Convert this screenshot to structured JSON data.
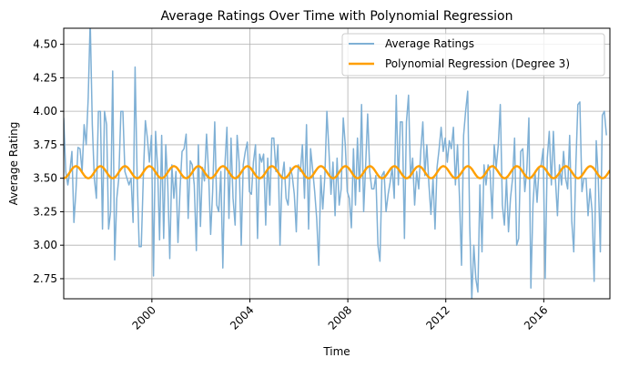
{
  "chart_data": {
    "type": "line",
    "title": "Average Ratings Over Time with Polynomial Regression",
    "xlabel": "Time",
    "ylabel": "Average Rating",
    "xlim": [
      1996.4,
      2018.7
    ],
    "ylim": [
      2.6,
      4.62
    ],
    "x_ticks": [
      2000,
      2004,
      2008,
      2012,
      2016
    ],
    "x_tick_labels": [
      "2000",
      "2004",
      "2008",
      "2012",
      "2016"
    ],
    "y_ticks": [
      2.75,
      3.0,
      3.25,
      3.5,
      3.75,
      4.0,
      4.25,
      4.5
    ],
    "y_tick_labels": [
      "2.75",
      "3.00",
      "3.25",
      "3.50",
      "3.75",
      "4.00",
      "4.25",
      "4.50"
    ],
    "grid": true,
    "legend_position": "top-right",
    "series": [
      {
        "name": "Average Ratings",
        "color": "#7fb0d5",
        "x_start": 1996.4,
        "x_step": 0.0833,
        "values": [
          3.95,
          3.55,
          3.45,
          3.55,
          3.7,
          3.17,
          3.4,
          3.73,
          3.72,
          3.55,
          3.9,
          3.75,
          4.1,
          4.68,
          3.9,
          3.5,
          3.35,
          4.0,
          4.0,
          3.12,
          4.0,
          3.9,
          3.12,
          3.25,
          4.3,
          2.89,
          3.35,
          3.5,
          4.0,
          4.0,
          3.55,
          3.5,
          3.45,
          3.5,
          3.17,
          4.33,
          3.5,
          2.99,
          2.99,
          3.5,
          3.93,
          3.8,
          3.62,
          3.82,
          2.77,
          3.85,
          3.58,
          3.04,
          3.82,
          3.05,
          3.75,
          3.45,
          2.9,
          3.6,
          3.35,
          3.55,
          3.02,
          3.42,
          3.7,
          3.72,
          3.83,
          3.2,
          3.63,
          3.6,
          3.45,
          2.96,
          3.75,
          3.14,
          3.58,
          3.48,
          3.83,
          3.55,
          3.08,
          3.4,
          3.92,
          3.3,
          3.25,
          3.55,
          2.83,
          3.6,
          3.88,
          3.2,
          3.8,
          3.35,
          3.15,
          3.82,
          3.62,
          3.0,
          3.6,
          3.7,
          3.77,
          3.4,
          3.38,
          3.62,
          3.75,
          3.05,
          3.68,
          3.62,
          3.68,
          3.15,
          3.65,
          3.3,
          3.8,
          3.8,
          3.55,
          3.75,
          3.0,
          3.5,
          3.62,
          3.35,
          3.3,
          3.58,
          3.52,
          3.38,
          3.1,
          3.6,
          3.55,
          3.75,
          3.35,
          3.9,
          3.12,
          3.72,
          3.57,
          3.4,
          3.2,
          2.85,
          3.52,
          3.27,
          3.52,
          4.0,
          3.7,
          3.38,
          3.62,
          3.22,
          3.65,
          3.3,
          3.42,
          3.95,
          3.75,
          3.4,
          3.35,
          3.13,
          3.72,
          3.3,
          3.8,
          3.4,
          4.05,
          3.25,
          3.6,
          3.98,
          3.55,
          3.42,
          3.42,
          3.52,
          3.0,
          2.88,
          3.52,
          3.55,
          3.25,
          3.38,
          3.47,
          3.58,
          3.35,
          4.12,
          3.45,
          3.92,
          3.92,
          3.05,
          3.92,
          4.12,
          3.5,
          3.65,
          3.3,
          3.55,
          3.42,
          3.7,
          3.92,
          3.52,
          3.75,
          3.45,
          3.23,
          3.5,
          3.12,
          3.58,
          3.72,
          3.88,
          3.7,
          3.8,
          3.62,
          3.78,
          3.72,
          3.88,
          3.45,
          3.75,
          3.35,
          2.85,
          3.82,
          4.0,
          4.15,
          3.15,
          2.6,
          3.0,
          2.75,
          2.65,
          3.45,
          2.95,
          3.6,
          3.45,
          3.6,
          3.55,
          3.2,
          3.75,
          3.58,
          3.75,
          4.05,
          3.3,
          3.15,
          3.5,
          3.1,
          3.35,
          3.5,
          3.8,
          3.0,
          3.05,
          3.7,
          3.72,
          3.4,
          3.57,
          3.95,
          2.68,
          3.3,
          3.55,
          3.32,
          3.58,
          3.6,
          3.72,
          2.75,
          3.65,
          3.85,
          3.45,
          3.85,
          3.5,
          3.22,
          3.6,
          3.45,
          3.7,
          3.5,
          3.42,
          3.82,
          3.18,
          2.95,
          3.6,
          4.05,
          4.07,
          3.4,
          3.5,
          3.5,
          3.22,
          3.42,
          3.25,
          2.73,
          3.78,
          3.5,
          2.95,
          3.97,
          4.0,
          3.82
        ]
      },
      {
        "name": "Polynomial Regression (Degree 3)",
        "color": "#ff9f00",
        "formula": "3.545 - 0.045*cos(2*pi*(t - 1996.4) / 1.0)",
        "amplitude": 0.045,
        "center": 3.545,
        "period_years": 1.0
      }
    ]
  }
}
